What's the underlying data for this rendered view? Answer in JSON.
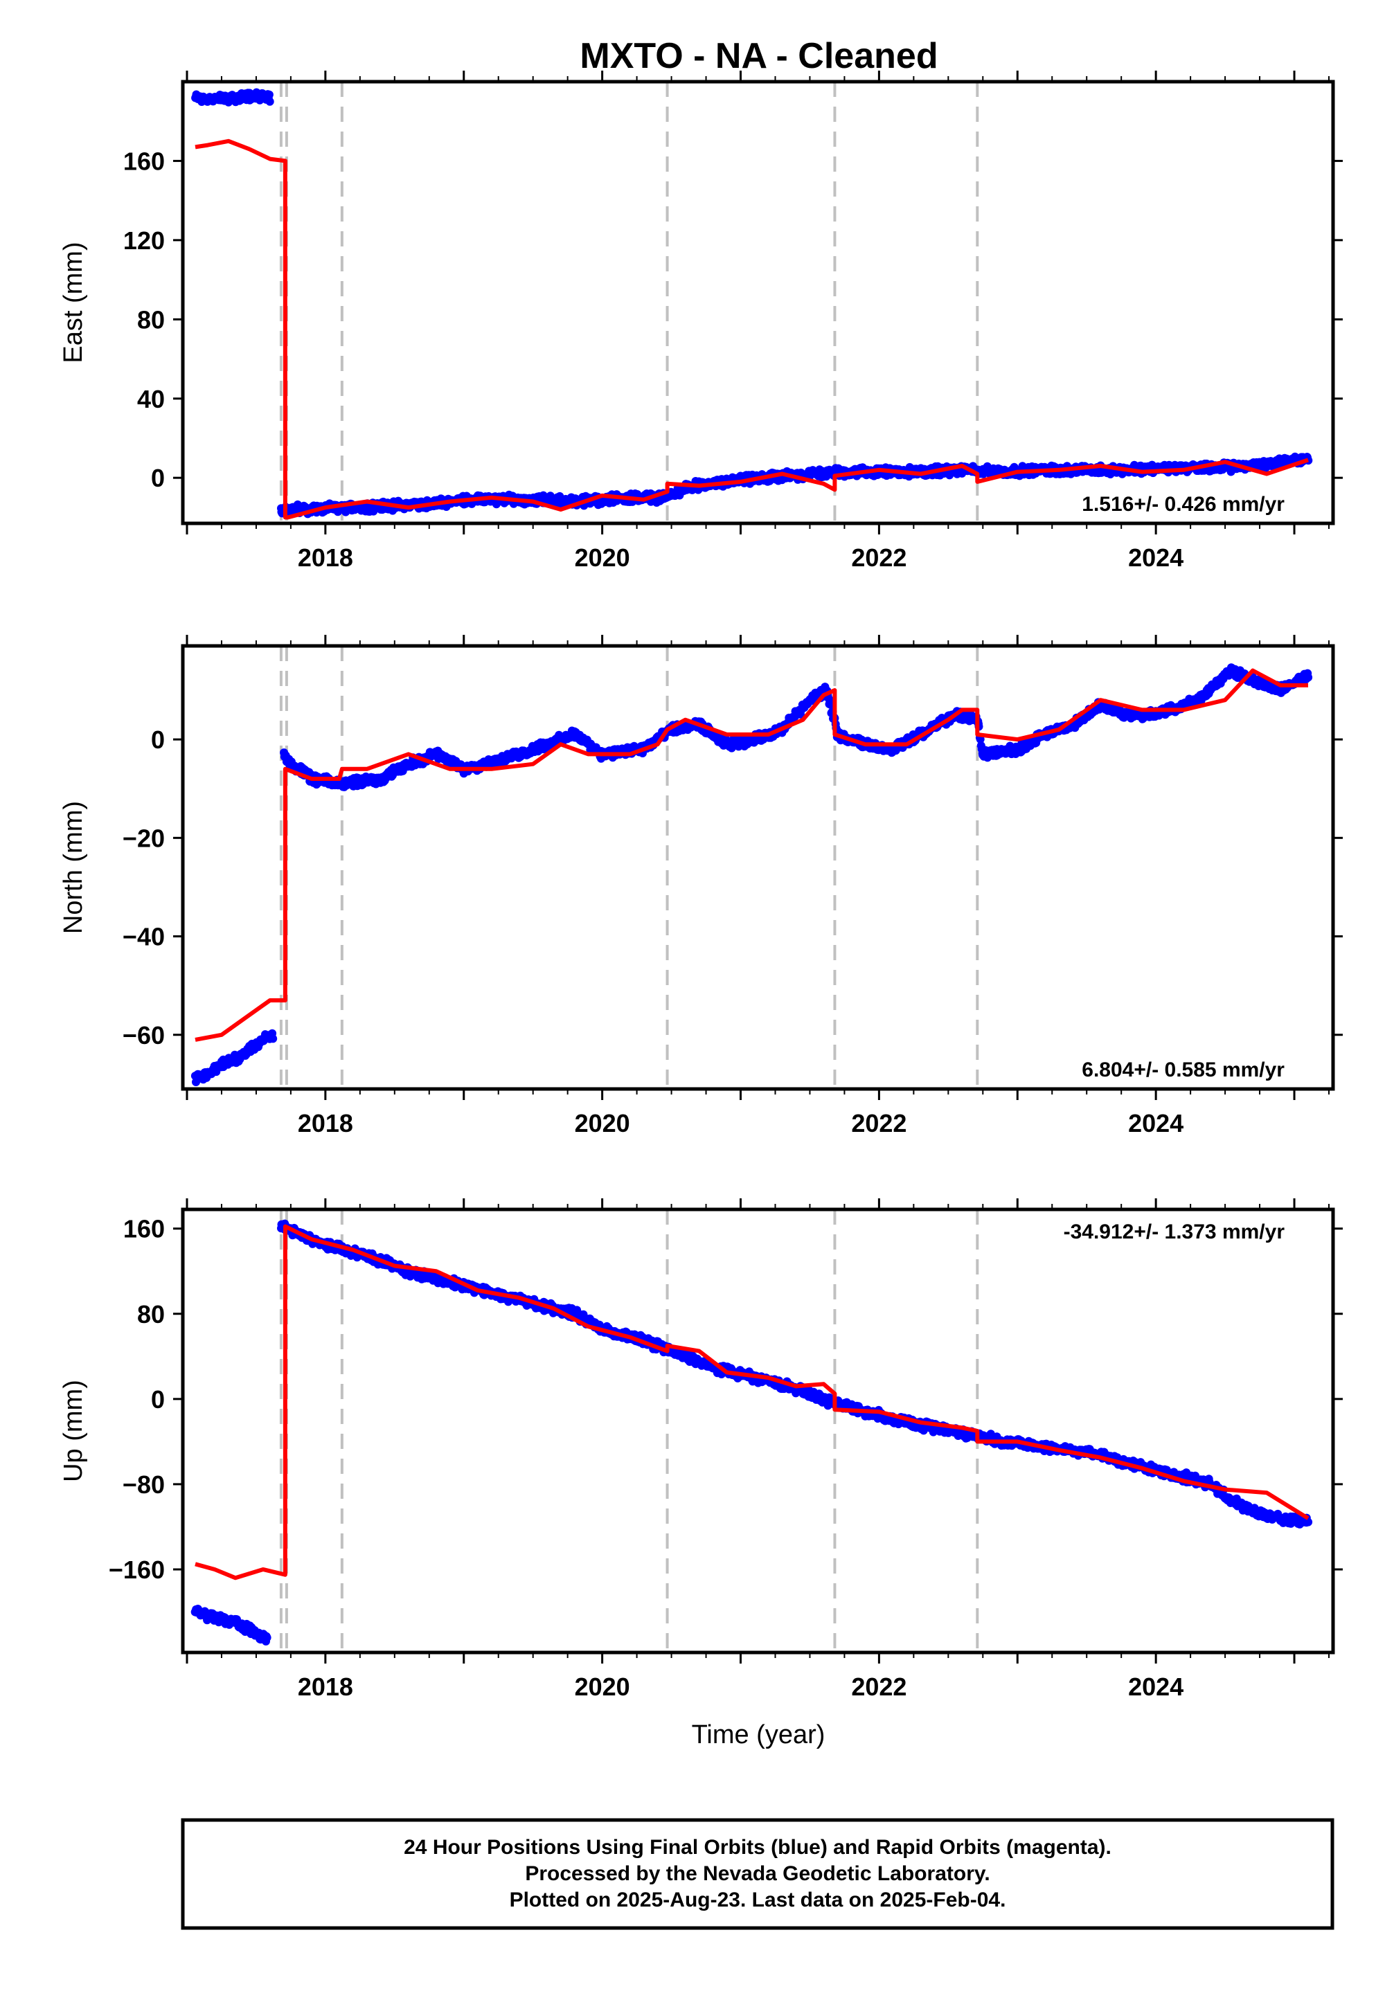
{
  "title": "MXTO  - NA - Cleaned",
  "colors": {
    "data": "#0000ff",
    "model": "#ff0000",
    "breaks": "#c0c0c0",
    "frame": "#000000"
  },
  "footer": {
    "line1": "24 Hour Positions Using Final Orbits (blue) and Rapid Orbits (magenta).",
    "line2": "Processed by the Nevada Geodetic Laboratory.",
    "line3": "Plotted on 2025-Aug-23. Last data on 2025-Feb-04."
  },
  "chart_data": [
    {
      "type": "scatter",
      "component": "east",
      "ylabel": "East (mm)",
      "xlabel": "",
      "xlim": [
        2016.97,
        2025.28
      ],
      "ylim": [
        -23,
        200
      ],
      "yticks": [
        0,
        40,
        80,
        120,
        160
      ],
      "yticks_labels": [
        "0",
        "40",
        "80",
        "120",
        "160"
      ],
      "xticks": [
        2018,
        2020,
        2022,
        2024
      ],
      "xticks_labels": [
        "2018",
        "2020",
        "2022",
        "2024"
      ],
      "rate_label": "1.516+/- 0.426 mm/yr",
      "rate_position": "bottom-right",
      "breaks": [
        2017.68,
        2017.72,
        2018.12,
        2020.47,
        2021.68,
        2022.71
      ],
      "data_segments": [
        {
          "x": [
            2017.06,
            2017.2,
            2017.35,
            2017.5,
            2017.6
          ],
          "y": [
            192,
            191,
            192,
            193,
            192
          ]
        },
        {
          "x": [
            2017.68,
            2017.9,
            2018.2,
            2018.5,
            2018.8,
            2019.0,
            2019.3,
            2019.6,
            2019.8,
            2020.0,
            2020.2,
            2020.45,
            2020.6,
            2020.9,
            2021.2,
            2021.5,
            2021.8,
            2022.0,
            2022.3,
            2022.6,
            2022.9,
            2023.2,
            2023.5,
            2023.8,
            2024.1,
            2024.4,
            2024.7,
            2025.0,
            2025.1
          ],
          "y": [
            -16,
            -16,
            -15,
            -14,
            -13,
            -11,
            -11,
            -11,
            -12,
            -11,
            -10,
            -10,
            -5,
            -2,
            0,
            2,
            3,
            3,
            3,
            4,
            3,
            4,
            4,
            4,
            5,
            5,
            6,
            9,
            9
          ]
        }
      ],
      "model": {
        "x": [
          2017.06,
          2017.15,
          2017.3,
          2017.45,
          2017.6,
          2017.71,
          2017.71,
          2017.73,
          2018.0,
          2018.3,
          2018.6,
          2018.9,
          2019.2,
          2019.5,
          2019.7,
          2020.0,
          2020.3,
          2020.47,
          2020.47,
          2020.7,
          2021.0,
          2021.3,
          2021.6,
          2021.68,
          2021.68,
          2022.0,
          2022.3,
          2022.6,
          2022.71,
          2022.71,
          2023.0,
          2023.3,
          2023.6,
          2023.9,
          2024.2,
          2024.5,
          2024.8,
          2025.1
        ],
        "y": [
          167,
          168,
          170,
          166,
          161,
          160,
          -20,
          -20,
          -15,
          -12,
          -15,
          -12,
          -10,
          -12,
          -16,
          -9,
          -11,
          -7,
          -3,
          -4,
          -2,
          2,
          -3,
          -6,
          1,
          4,
          2,
          6,
          2,
          -2,
          3,
          4,
          6,
          3,
          4,
          8,
          2,
          9
        ]
      }
    },
    {
      "type": "scatter",
      "component": "north",
      "ylabel": "North (mm)",
      "xlabel": "",
      "xlim": [
        2016.97,
        2025.28
      ],
      "ylim": [
        -71,
        19
      ],
      "yticks": [
        -60,
        -40,
        -20,
        0
      ],
      "yticks_labels": [
        "−60",
        "−40",
        "−20",
        "0"
      ],
      "xticks": [
        2018,
        2020,
        2022,
        2024
      ],
      "xticks_labels": [
        "2018",
        "2020",
        "2022",
        "2024"
      ],
      "rate_label": "6.804+/- 0.585 mm/yr",
      "rate_position": "bottom-right",
      "breaks": [
        2017.68,
        2017.72,
        2018.12,
        2020.47,
        2021.68,
        2022.71
      ],
      "data_segments": [
        {
          "x": [
            2017.06,
            2017.15,
            2017.25,
            2017.35,
            2017.45,
            2017.55,
            2017.62
          ],
          "y": [
            -69,
            -68,
            -66,
            -65,
            -63,
            -61,
            -60
          ]
        },
        {
          "x": [
            2017.7,
            2017.75,
            2017.9,
            2018.1,
            2018.4,
            2018.6,
            2018.8,
            2019.0,
            2019.3,
            2019.6,
            2019.8,
            2020.0,
            2020.3,
            2020.5,
            2020.7,
            2020.9,
            2021.1,
            2021.3,
            2021.5,
            2021.62,
            2021.7,
            2021.9,
            2022.1,
            2022.3,
            2022.55,
            2022.71,
            2022.75,
            2023.0,
            2023.2,
            2023.4,
            2023.6,
            2023.8,
            2024.0,
            2024.3,
            2024.55,
            2024.7,
            2024.9,
            2025.1
          ],
          "y": [
            -3,
            -5,
            -8,
            -9,
            -8,
            -5,
            -3,
            -6,
            -4,
            -1,
            1,
            -3,
            -2,
            2,
            3,
            -1,
            0,
            2,
            8,
            10,
            1,
            -1,
            -2,
            1,
            5,
            4,
            -3,
            -2,
            1,
            3,
            7,
            5,
            5,
            8,
            14,
            12,
            10,
            13
          ]
        }
      ],
      "model": {
        "x": [
          2017.06,
          2017.25,
          2017.45,
          2017.6,
          2017.71,
          2017.71,
          2017.9,
          2018.1,
          2018.12,
          2018.3,
          2018.6,
          2018.9,
          2019.2,
          2019.5,
          2019.7,
          2019.9,
          2020.2,
          2020.4,
          2020.47,
          2020.6,
          2020.9,
          2021.2,
          2021.45,
          2021.6,
          2021.68,
          2021.68,
          2021.9,
          2022.2,
          2022.5,
          2022.6,
          2022.71,
          2022.71,
          2023.0,
          2023.3,
          2023.6,
          2023.9,
          2024.2,
          2024.5,
          2024.7,
          2024.9,
          2025.1
        ],
        "y": [
          -61,
          -60,
          -56,
          -53,
          -53,
          -6,
          -8,
          -8,
          -6,
          -6,
          -3,
          -6,
          -6,
          -5,
          -1,
          -3,
          -3,
          -1,
          2,
          4,
          1,
          1,
          4,
          9,
          10,
          1,
          -1,
          -1,
          4,
          6,
          6,
          1,
          0,
          2,
          8,
          6,
          6,
          8,
          14,
          11,
          11
        ]
      }
    },
    {
      "type": "scatter",
      "component": "up",
      "ylabel": "Up (mm)",
      "xlabel": "Time (year)",
      "xlim": [
        2016.97,
        2025.28
      ],
      "ylim": [
        -238,
        178
      ],
      "yticks": [
        -160,
        -80,
        0,
        80,
        160
      ],
      "yticks_labels": [
        "−160",
        "−80",
        "0",
        "80",
        "160"
      ],
      "xticks": [
        2018,
        2020,
        2022,
        2024
      ],
      "xticks_labels": [
        "2018",
        "2020",
        "2022",
        "2024"
      ],
      "rate_label": "-34.912+/- 1.373 mm/yr",
      "rate_position": "top-right",
      "breaks": [
        2017.68,
        2017.72,
        2018.12,
        2020.47,
        2021.68,
        2022.71
      ],
      "data_segments": [
        {
          "x": [
            2017.06,
            2017.2,
            2017.35,
            2017.5,
            2017.58
          ],
          "y": [
            -200,
            -205,
            -210,
            -220,
            -225
          ]
        },
        {
          "x": [
            2017.68,
            2017.8,
            2018.0,
            2018.3,
            2018.6,
            2018.9,
            2019.2,
            2019.5,
            2019.8,
            2020.0,
            2020.3,
            2020.5,
            2020.8,
            2021.1,
            2021.4,
            2021.7,
            2022.0,
            2022.3,
            2022.6,
            2022.9,
            2023.2,
            2023.5,
            2023.8,
            2024.1,
            2024.4,
            2024.6,
            2024.8,
            2025.1
          ],
          "y": [
            162,
            155,
            145,
            135,
            120,
            110,
            100,
            90,
            80,
            65,
            55,
            45,
            30,
            20,
            10,
            -5,
            -15,
            -25,
            -32,
            -40,
            -45,
            -50,
            -60,
            -70,
            -80,
            -100,
            -110,
            -115
          ]
        }
      ],
      "model": {
        "x": [
          2017.06,
          2017.2,
          2017.35,
          2017.55,
          2017.71,
          2017.71,
          2017.9,
          2018.2,
          2018.5,
          2018.8,
          2019.1,
          2019.4,
          2019.65,
          2019.9,
          2020.2,
          2020.47,
          2020.47,
          2020.7,
          2020.9,
          2021.2,
          2021.4,
          2021.6,
          2021.68,
          2021.68,
          2022.0,
          2022.3,
          2022.6,
          2022.71,
          2022.71,
          2023.0,
          2023.3,
          2023.6,
          2023.9,
          2024.2,
          2024.5,
          2024.8,
          2025.1
        ],
        "y": [
          -155,
          -160,
          -168,
          -160,
          -165,
          162,
          150,
          140,
          125,
          120,
          102,
          95,
          85,
          68,
          58,
          45,
          50,
          45,
          25,
          20,
          12,
          14,
          5,
          -10,
          -12,
          -22,
          -27,
          -30,
          -40,
          -40,
          -48,
          -55,
          -65,
          -77,
          -85,
          -88,
          -112
        ]
      }
    }
  ]
}
